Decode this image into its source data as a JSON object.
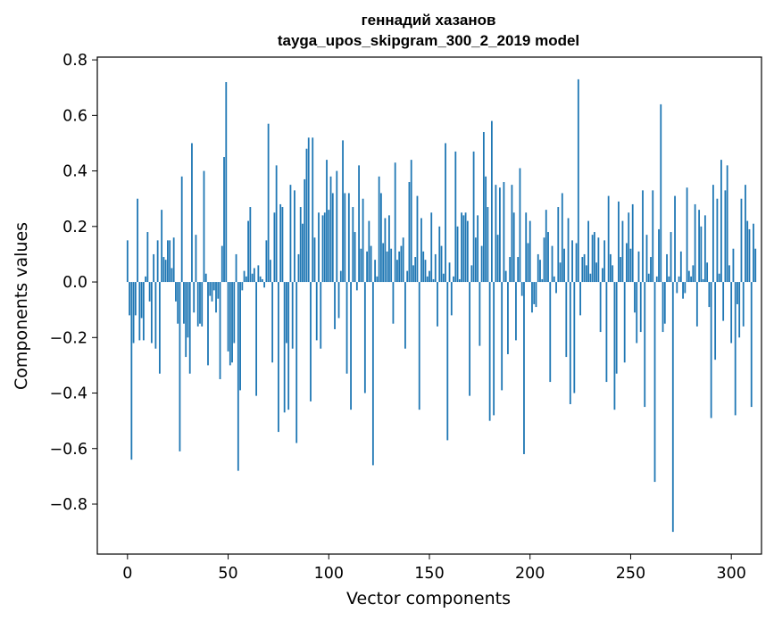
{
  "chart_data": {
    "type": "bar",
    "title": "геннадий хазанов",
    "subtitle": "tayga_upos_skipgram_300_2_2019 model",
    "xlabel": "Vector components",
    "ylabel": "Components values",
    "xlim": [
      -15,
      315
    ],
    "ylim": [
      -0.98,
      0.81
    ],
    "xticks": [
      0,
      50,
      100,
      150,
      200,
      250,
      300
    ],
    "xtick_labels": [
      "0",
      "50",
      "100",
      "150",
      "200",
      "250",
      "300"
    ],
    "yticks": [
      -0.8,
      -0.6,
      -0.4,
      -0.2,
      0.0,
      0.2,
      0.4,
      0.6,
      0.8
    ],
    "ytick_labels": [
      "−0.8",
      "−0.6",
      "−0.4",
      "−0.2",
      "0.0",
      "0.2",
      "0.4",
      "0.6",
      "0.8"
    ],
    "bar_color": "#1f77b4",
    "values": [
      0.15,
      -0.12,
      -0.64,
      -0.22,
      -0.12,
      0.3,
      -0.21,
      -0.13,
      -0.21,
      0.02,
      0.18,
      -0.07,
      -0.22,
      0.1,
      -0.24,
      0.15,
      -0.33,
      0.26,
      0.09,
      0.08,
      0.15,
      0.15,
      0.05,
      0.16,
      -0.07,
      -0.15,
      -0.61,
      0.38,
      -0.15,
      -0.27,
      -0.2,
      -0.33,
      0.5,
      -0.11,
      0.17,
      -0.16,
      -0.15,
      -0.16,
      0.4,
      0.03,
      -0.3,
      -0.05,
      -0.07,
      -0.03,
      -0.11,
      -0.06,
      -0.35,
      0.13,
      0.45,
      0.72,
      -0.25,
      -0.3,
      -0.29,
      -0.22,
      0.1,
      -0.68,
      -0.39,
      -0.03,
      0.04,
      0.02,
      0.22,
      0.27,
      0.03,
      0.05,
      -0.41,
      0.06,
      0.02,
      0.01,
      -0.02,
      0.15,
      0.57,
      0.08,
      -0.29,
      0.25,
      0.42,
      -0.54,
      0.28,
      0.27,
      -0.47,
      -0.22,
      -0.46,
      0.35,
      -0.24,
      0.33,
      -0.58,
      0.1,
      0.27,
      0.21,
      0.37,
      0.48,
      0.52,
      -0.43,
      0.52,
      0.16,
      -0.21,
      0.25,
      -0.24,
      0.24,
      0.25,
      0.44,
      0.26,
      0.38,
      0.32,
      -0.17,
      0.4,
      -0.13,
      0.04,
      0.51,
      0.32,
      -0.33,
      0.32,
      -0.46,
      0.27,
      0.18,
      -0.03,
      0.42,
      0.12,
      0.3,
      -0.4,
      0.11,
      0.22,
      0.13,
      -0.66,
      0.08,
      0.02,
      0.38,
      0.32,
      0.14,
      0.23,
      0.11,
      0.24,
      0.12,
      -0.15,
      0.43,
      0.08,
      0.11,
      0.13,
      0.16,
      -0.24,
      0.04,
      0.36,
      0.44,
      0.06,
      0.09,
      0.31,
      -0.46,
      0.23,
      0.11,
      0.08,
      0.02,
      0.04,
      0.25,
      0.01,
      0.1,
      -0.16,
      0.2,
      0.13,
      0.03,
      0.5,
      -0.57,
      0.07,
      -0.12,
      0.02,
      0.47,
      0.2,
      0.01,
      0.25,
      0.24,
      0.25,
      0.22,
      -0.41,
      0.06,
      0.47,
      0.16,
      0.24,
      -0.23,
      0.13,
      0.54,
      0.38,
      0.27,
      -0.5,
      0.58,
      -0.48,
      0.35,
      0.17,
      0.34,
      -0.39,
      0.36,
      0.04,
      -0.26,
      0.09,
      0.35,
      0.25,
      -0.21,
      0.09,
      0.41,
      -0.05,
      -0.62,
      0.25,
      0.14,
      0.22,
      -0.11,
      -0.08,
      -0.09,
      0.1,
      0.08,
      0.01,
      0.16,
      0.26,
      0.18,
      -0.36,
      0.13,
      0.02,
      -0.04,
      0.27,
      0.07,
      0.32,
      0.12,
      -0.27,
      0.23,
      -0.44,
      0.15,
      -0.4,
      0.14,
      0.73,
      -0.12,
      0.09,
      0.1,
      0.06,
      0.22,
      0.03,
      0.17,
      0.18,
      0.07,
      0.16,
      -0.18,
      0.05,
      0.15,
      -0.36,
      0.31,
      0.1,
      0.06,
      -0.46,
      -0.33,
      0.29,
      0.09,
      0.22,
      -0.29,
      0.14,
      0.25,
      0.12,
      0.28,
      -0.11,
      -0.22,
      0.11,
      -0.18,
      0.33,
      -0.45,
      0.17,
      0.03,
      0.09,
      0.33,
      -0.72,
      0.02,
      0.19,
      0.64,
      -0.18,
      -0.15,
      0.1,
      0.02,
      0.18,
      -0.9,
      0.31,
      -0.04,
      0.02,
      0.11,
      -0.06,
      -0.04,
      0.34,
      0.04,
      0.02,
      0.06,
      0.28,
      -0.16,
      0.26,
      0.2,
      0.01,
      0.24,
      0.07,
      -0.09,
      -0.49,
      0.35,
      -0.28,
      0.3,
      0.03,
      0.44,
      -0.14,
      0.33,
      0.42,
      0.06,
      -0.22,
      0.12,
      -0.48,
      -0.08,
      -0.2,
      0.3,
      -0.16,
      0.35,
      0.22,
      0.19,
      -0.45,
      0.21,
      0.12
    ]
  }
}
